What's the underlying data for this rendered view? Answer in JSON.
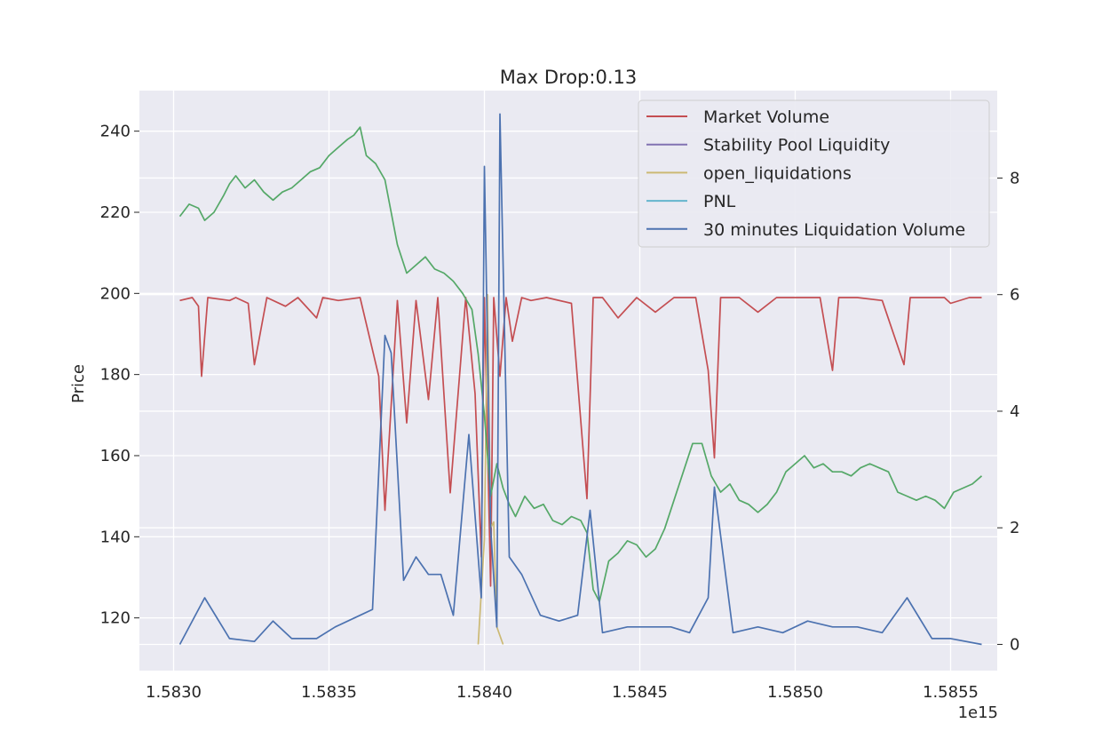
{
  "chart_data": {
    "type": "line",
    "title": "Max Drop:0.13",
    "xlabel": "",
    "ylabel_left": "Price",
    "ylabel_right": "",
    "x_offset_label": "1e15",
    "x_ticks": [
      1.583,
      1.5835,
      1.584,
      1.5845,
      1.585,
      1.5855
    ],
    "x_tick_labels": [
      "1.5830",
      "1.5835",
      "1.5840",
      "1.5845",
      "1.5850",
      "1.5855"
    ],
    "y_left_ticks": [
      120,
      140,
      160,
      180,
      200,
      220,
      240
    ],
    "y_right_ticks": [
      0,
      2,
      4,
      6,
      8
    ],
    "xlim": [
      1.58289,
      1.58565
    ],
    "ylim_left": [
      107,
      250
    ],
    "ylim_right": [
      -0.45,
      9.5
    ],
    "grid": true,
    "legend_position": "upper right",
    "colors": {
      "price": "#55a868",
      "market_volume": "#c44e52",
      "stability_pool_liquidity": "#8172b2",
      "open_liquidations": "#ccb974",
      "pnl": "#64b5cd",
      "liquidation_volume": "#4c72b0",
      "ylabel": "#55a868"
    },
    "legend": [
      {
        "name": "Market Volume",
        "color": "#c44e52"
      },
      {
        "name": "Stability Pool Liquidity",
        "color": "#8172b2"
      },
      {
        "name": "open_liquidations",
        "color": "#ccb974"
      },
      {
        "name": "PNL",
        "color": "#64b5cd"
      },
      {
        "name": "30 minutes Liquidation Volume",
        "color": "#4c72b0"
      }
    ],
    "series": [
      {
        "name": "Price",
        "axis": "left",
        "color": "#55a868",
        "x": [
          1.58302,
          1.58305,
          1.58308,
          1.5831,
          1.58313,
          1.58316,
          1.58318,
          1.5832,
          1.58323,
          1.58326,
          1.58329,
          1.58332,
          1.58335,
          1.58338,
          1.58341,
          1.58344,
          1.58347,
          1.5835,
          1.58353,
          1.58356,
          1.58358,
          1.5836,
          1.58362,
          1.58365,
          1.58368,
          1.5837,
          1.58372,
          1.58375,
          1.58378,
          1.58381,
          1.58384,
          1.58387,
          1.5839,
          1.58393,
          1.58396,
          1.58398,
          1.584,
          1.58402,
          1.58404,
          1.58406,
          1.58408,
          1.5841,
          1.58413,
          1.58416,
          1.58419,
          1.58422,
          1.58425,
          1.58428,
          1.58431,
          1.58433,
          1.58435,
          1.58437,
          1.5844,
          1.58443,
          1.58446,
          1.58449,
          1.58452,
          1.58455,
          1.58458,
          1.58461,
          1.58464,
          1.58467,
          1.5847,
          1.58473,
          1.58476,
          1.58479,
          1.58482,
          1.58485,
          1.58488,
          1.58491,
          1.58494,
          1.58497,
          1.585,
          1.58503,
          1.58506,
          1.58509,
          1.58512,
          1.58515,
          1.58518,
          1.58521,
          1.58524,
          1.58527,
          1.5853,
          1.58533,
          1.58536,
          1.58539,
          1.58542,
          1.58545,
          1.58548,
          1.58551,
          1.58554,
          1.58557,
          1.5856
        ],
        "y": [
          219,
          222,
          221,
          218,
          220,
          224,
          227,
          229,
          226,
          228,
          225,
          223,
          225,
          226,
          228,
          230,
          231,
          234,
          236,
          238,
          239,
          241,
          234,
          232,
          228,
          220,
          212,
          205,
          207,
          209,
          206,
          205,
          203,
          200,
          196,
          185,
          170,
          150,
          158,
          152,
          148,
          145,
          150,
          147,
          148,
          144,
          143,
          145,
          144,
          141,
          127,
          124,
          134,
          136,
          139,
          138,
          135,
          137,
          142,
          149,
          156,
          163,
          163,
          155,
          151,
          153,
          149,
          148,
          146,
          148,
          151,
          156,
          158,
          160,
          157,
          158,
          156,
          156,
          155,
          157,
          158,
          157,
          156,
          151,
          150,
          149,
          150,
          149,
          147,
          151,
          152,
          153,
          155
        ]
      },
      {
        "name": "Market Volume",
        "axis": "right",
        "color": "#c44e52",
        "x": [
          1.58302,
          1.58306,
          1.58308,
          1.58309,
          1.58311,
          1.58318,
          1.5832,
          1.58324,
          1.58326,
          1.5833,
          1.58336,
          1.5834,
          1.58346,
          1.58348,
          1.58353,
          1.5836,
          1.58366,
          1.58368,
          1.58372,
          1.58375,
          1.58378,
          1.58382,
          1.58385,
          1.58389,
          1.58394,
          1.58397,
          1.58399,
          1.584,
          1.58402,
          1.58403,
          1.58405,
          1.58407,
          1.58409,
          1.58412,
          1.58415,
          1.5842,
          1.58428,
          1.58433,
          1.58435,
          1.58438,
          1.58443,
          1.58449,
          1.58455,
          1.58461,
          1.58468,
          1.58472,
          1.58474,
          1.58476,
          1.58482,
          1.58488,
          1.58494,
          1.58502,
          1.58508,
          1.58512,
          1.58514,
          1.5852,
          1.58528,
          1.58535,
          1.58537,
          1.5854,
          1.58548,
          1.5855,
          1.58556,
          1.5856
        ],
        "y": [
          5.9,
          5.95,
          5.8,
          4.6,
          5.95,
          5.9,
          5.95,
          5.85,
          4.8,
          5.95,
          5.8,
          5.95,
          5.6,
          5.95,
          5.9,
          5.95,
          4.6,
          2.3,
          5.9,
          3.8,
          5.9,
          4.2,
          5.95,
          2.6,
          5.95,
          4.3,
          1.5,
          5.95,
          1.0,
          5.95,
          4.6,
          5.95,
          5.2,
          5.95,
          5.9,
          5.95,
          5.85,
          2.5,
          5.95,
          5.95,
          5.6,
          5.95,
          5.7,
          5.95,
          5.95,
          4.7,
          3.2,
          5.95,
          5.95,
          5.7,
          5.95,
          5.95,
          5.95,
          4.7,
          5.95,
          5.95,
          5.9,
          4.8,
          5.95,
          5.95,
          5.95,
          5.85,
          5.95,
          5.95
        ]
      },
      {
        "name": "open_liquidations",
        "axis": "right",
        "color": "#ccb974",
        "x": [
          1.58398,
          1.584,
          1.58401,
          1.58402,
          1.58403,
          1.58404,
          1.58406
        ],
        "y": [
          0,
          1.8,
          6.0,
          2.0,
          2.1,
          0.3,
          0
        ]
      },
      {
        "name": "30 minutes Liquidation Volume",
        "axis": "right",
        "color": "#4c72b0",
        "x": [
          1.58302,
          1.5831,
          1.58318,
          1.58326,
          1.58332,
          1.58338,
          1.58346,
          1.58352,
          1.5836,
          1.58364,
          1.58368,
          1.5837,
          1.58374,
          1.58378,
          1.58382,
          1.58386,
          1.5839,
          1.58395,
          1.58399,
          1.584,
          1.58402,
          1.58404,
          1.58405,
          1.58408,
          1.58412,
          1.58418,
          1.58424,
          1.5843,
          1.58434,
          1.58438,
          1.58446,
          1.58452,
          1.5846,
          1.58466,
          1.58472,
          1.58474,
          1.5848,
          1.58488,
          1.58496,
          1.58504,
          1.58512,
          1.5852,
          1.58528,
          1.58536,
          1.58544,
          1.5855,
          1.5856
        ],
        "y": [
          0,
          0.8,
          0.1,
          0.05,
          0.4,
          0.1,
          0.1,
          0.3,
          0.5,
          0.6,
          5.3,
          5.0,
          1.1,
          1.5,
          1.2,
          1.2,
          0.5,
          3.6,
          0.8,
          8.2,
          2.0,
          0.3,
          9.1,
          1.5,
          1.2,
          0.5,
          0.4,
          0.5,
          2.3,
          0.2,
          0.3,
          0.3,
          0.3,
          0.2,
          0.8,
          2.7,
          0.2,
          0.3,
          0.2,
          0.4,
          0.3,
          0.3,
          0.2,
          0.8,
          0.1,
          0.1,
          0
        ]
      }
    ]
  }
}
